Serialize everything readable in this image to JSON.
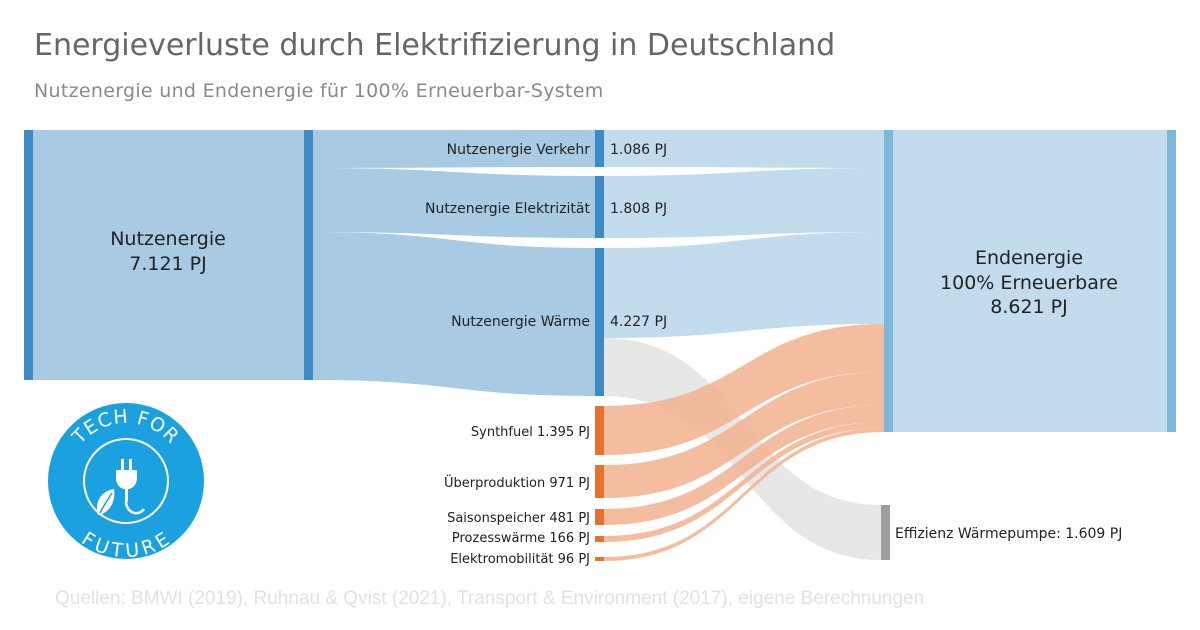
{
  "header": {
    "title": "Energieverluste durch Elektrifizierung in Deutschland",
    "subtitle": "Nutzenergie und Endenergie für 100% Erneuerbar-System"
  },
  "colors": {
    "source_node": "#3e8ac6",
    "nutz_flow": "#a8cbe3",
    "end_flow": "#c3dced",
    "end_node": "#7fb6dc",
    "loss_node": "#e8712e",
    "loss_flow": "#f2b18f",
    "gray_flow": "#e6e6e6",
    "gray_node": "#9e9e9e",
    "logo": "#1ba0e0"
  },
  "nodes": {
    "nutzenergie": {
      "name": "Nutzenergie",
      "value": "7.121 PJ"
    },
    "endenergie": {
      "line1": "Endenergie",
      "line2": "100% Erneuerbare",
      "value": "8.621 PJ"
    },
    "verkehr": {
      "label": "Nutzenergie Verkehr",
      "value": "1.086 PJ"
    },
    "elektrizitaet": {
      "label": "Nutzenergie Elektrizität",
      "value": "1.808 PJ"
    },
    "waerme": {
      "label": "Nutzenergie Wärme",
      "value": "4.227 PJ"
    },
    "synthfuel": {
      "label": "Synthfuel 1.395 PJ"
    },
    "ueberproduktion": {
      "label": "Überproduktion 971 PJ"
    },
    "saisonspeicher": {
      "label": "Saisonspeicher 481 PJ"
    },
    "prozesswaerme": {
      "label": "Prozesswärme 166 PJ"
    },
    "elektromobilitaet": {
      "label": "Elektromobilität 96 PJ"
    },
    "waermepumpe": {
      "label": "Effizienz Wärmepumpe: 1.609 PJ"
    }
  },
  "logo": {
    "top_text": "TECH FOR",
    "bottom_text": "FUTURE"
  },
  "footer": {
    "source": "Quellen: BMWI (2019), Ruhnau & Qvist (2021), Transport & Environment (2017), eigene Berechnungen"
  }
}
